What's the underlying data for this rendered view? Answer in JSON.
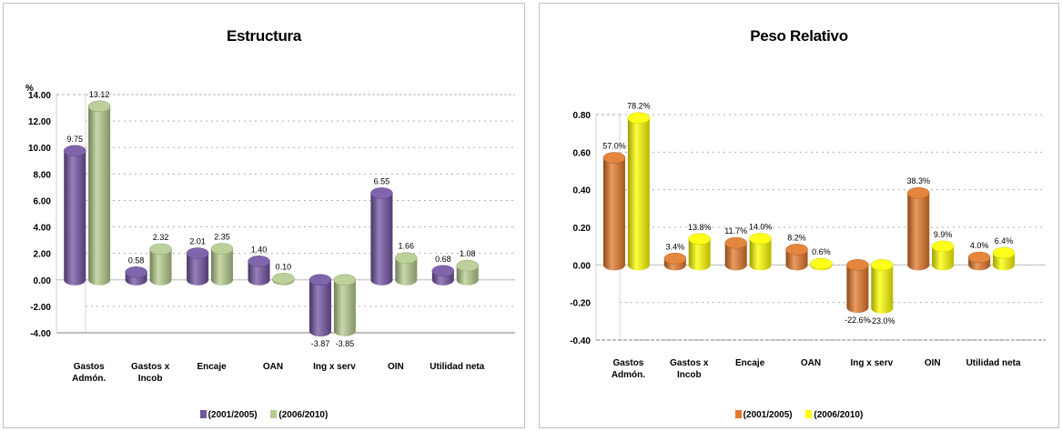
{
  "chart_data": [
    {
      "type": "bar",
      "title": "Estructura",
      "ylabel": "%",
      "ylim": [
        -4,
        14
      ],
      "yticks": [
        "-4.00",
        "-2.00",
        "0.00",
        "2.00",
        "4.00",
        "6.00",
        "8.00",
        "10.00",
        "12.00",
        "14.00"
      ],
      "categories": [
        "Gastos Admón.",
        "Gastos x Incob",
        "Encaje",
        "OAN",
        "Ing x serv",
        "OIN",
        "Utilidad neta"
      ],
      "category_lines": [
        [
          "Gastos",
          "Admón."
        ],
        [
          "Gastos x",
          "Incob"
        ],
        [
          "Encaje"
        ],
        [
          "OAN"
        ],
        [
          "Ing x serv"
        ],
        [
          "OIN"
        ],
        [
          "Utilidad neta"
        ]
      ],
      "series": [
        {
          "name": "(2001/2005)",
          "color": "#7354a3",
          "values": [
            9.75,
            0.58,
            2.01,
            1.4,
            -3.87,
            6.55,
            0.68
          ],
          "labels": [
            "9.75",
            "0.58",
            "2.01",
            "1.40",
            "-3.87",
            "6.55",
            "0.68"
          ]
        },
        {
          "name": "(2006/2010)",
          "color": "#b5cc8e",
          "values": [
            13.12,
            2.32,
            2.35,
            0.1,
            -3.85,
            1.66,
            1.08
          ],
          "labels": [
            "13.12",
            "2.32",
            "2.35",
            "0.10",
            "-3.85",
            "1.66",
            "1.08"
          ]
        }
      ],
      "legend_position": "bottom",
      "grid": true
    },
    {
      "type": "bar",
      "title": "Peso Relativo",
      "ylabel": "",
      "ylim": [
        -0.4,
        0.8
      ],
      "yticks": [
        "-0.40",
        "-0.20",
        "0.00",
        "0.20",
        "0.40",
        "0.60",
        "0.80"
      ],
      "categories": [
        "Gastos Admón.",
        "Gastos x Incob",
        "Encaje",
        "OAN",
        "Ing x serv",
        "OIN",
        "Utilidad neta"
      ],
      "category_lines": [
        [
          "Gastos",
          "Admón."
        ],
        [
          "Gastos x",
          "Incob"
        ],
        [
          "Encaje"
        ],
        [
          "OAN"
        ],
        [
          "Ing x serv"
        ],
        [
          "OIN"
        ],
        [
          "Utilidad neta"
        ]
      ],
      "series": [
        {
          "name": "(2001/2005)",
          "color": "#e2782a",
          "values": [
            0.57,
            0.034,
            0.117,
            0.082,
            -0.226,
            0.383,
            0.04
          ],
          "labels": [
            "57.0%",
            "3.4%",
            "11.7%",
            "8.2%",
            "-22.6%",
            "38.3%",
            "4.0%"
          ]
        },
        {
          "name": "(2006/2010)",
          "color": "#ffff00",
          "values": [
            0.782,
            0.138,
            0.14,
            0.006,
            -0.23,
            0.099,
            0.064
          ],
          "labels": [
            "78.2%",
            "13.8%",
            "14.0%",
            "0.6%",
            "-23.0%",
            "9.9%",
            "6.4%"
          ]
        }
      ],
      "legend_position": "bottom",
      "grid": true
    }
  ]
}
